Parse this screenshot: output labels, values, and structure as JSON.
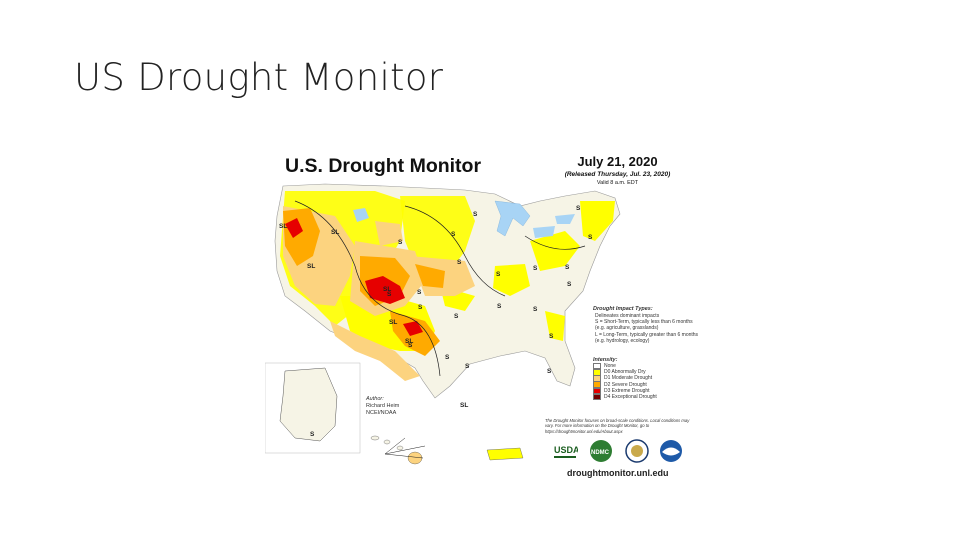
{
  "slide": {
    "title": "US Drought Monitor"
  },
  "map": {
    "title": "U.S. Drought Monitor",
    "date": "July 21, 2020",
    "released": "(Released Thursday, Jul. 23, 2020)",
    "valid": "Valid 8 a.m. EDT",
    "impact_types": {
      "header": "Drought Impact Types:",
      "delineates": "Delineates dominant impacts",
      "short_term": "S = Short-Term, typically less than 6 months (e.g. agriculture, grasslands)",
      "long_term": "L = Long-Term, typically greater than 6 months (e.g. hydrology, ecology)"
    },
    "legend": {
      "header": "Intensity:",
      "items": [
        {
          "label": "None",
          "color": "#ffffff"
        },
        {
          "label": "D0 Abnormally Dry",
          "color": "#ffff00"
        },
        {
          "label": "D1 Moderate Drought",
          "color": "#fcd37f"
        },
        {
          "label": "D2 Severe Drought",
          "color": "#ffaa00"
        },
        {
          "label": "D3 Extreme Drought",
          "color": "#e60000"
        },
        {
          "label": "D4 Exceptional Drought",
          "color": "#730000"
        }
      ]
    },
    "author": {
      "header": "Author:",
      "name": "Richard Heim",
      "org": "NCEI/NOAA"
    },
    "note": "The Drought Monitor focuses on broad-scale conditions. Local conditions may vary. For more information on the Drought Monitor, go to https://droughtmonitor.unl.edu/About.aspx",
    "url": "droughtmonitor.unl.edu",
    "logos": [
      "USDA",
      "NDMC",
      "DOC",
      "NOAA"
    ],
    "impact_labels": [
      "SL",
      "SL",
      "SL",
      "SL",
      "S",
      "S",
      "S",
      "S",
      "S",
      "S",
      "S",
      "S",
      "S",
      "S",
      "S",
      "S",
      "S",
      "S",
      "S",
      "S",
      "S",
      "S",
      "SL",
      "SL",
      "S",
      "S",
      "S",
      "SL",
      "S"
    ]
  }
}
